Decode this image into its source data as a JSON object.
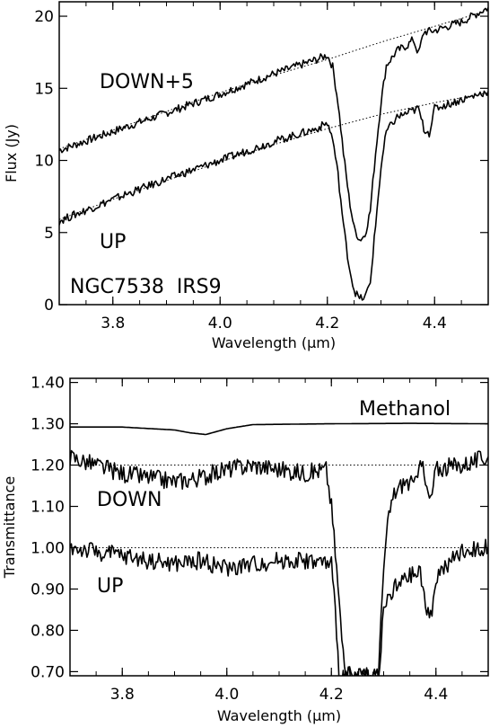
{
  "chart_data": [
    {
      "type": "line",
      "xlabel": "Wavelength (μm)",
      "ylabel": "Flux (Jy)",
      "xlim": [
        3.7,
        4.5
      ],
      "ylim": [
        0,
        21
      ],
      "xticks": [
        3.8,
        4.0,
        4.2,
        4.4
      ],
      "xtick_labels": [
        "3.8",
        "4.0",
        "4.2",
        "4.4"
      ],
      "yticks": [
        0,
        5,
        10,
        15,
        20
      ],
      "ytick_labels": [
        "0",
        "5",
        "10",
        "15",
        "20"
      ],
      "annotations": [
        {
          "text": "DOWN+5",
          "x": 3.75,
          "y": 15.5
        },
        {
          "text": "UP",
          "x": 3.75,
          "y": 4.5
        },
        {
          "text": "NGC7538  IRS9",
          "x": 3.71,
          "y": 1.2
        }
      ],
      "series": [
        {
          "x": [
            3.7,
            3.8,
            3.9,
            4.0,
            4.1,
            4.18,
            4.2,
            4.21,
            4.22,
            4.23,
            4.24,
            4.25,
            4.26,
            4.27,
            4.28,
            4.29,
            4.3,
            4.31,
            4.33,
            4.35,
            4.36,
            4.37,
            4.38,
            4.4,
            4.45,
            4.5
          ],
          "values": [
            10.7,
            12.0,
            13.3,
            14.6,
            16.0,
            17.0,
            17.3,
            16.5,
            14.0,
            10.5,
            7.5,
            5.3,
            4.5,
            4.8,
            6.5,
            10.5,
            14.0,
            16.6,
            17.6,
            18.0,
            18.4,
            17.4,
            18.9,
            19.0,
            19.6,
            20.6
          ]
        },
        {
          "x": [
            3.7,
            3.8,
            3.9,
            4.0,
            4.1,
            4.18,
            4.2,
            4.21,
            4.22,
            4.23,
            4.24,
            4.25,
            4.26,
            4.27,
            4.28,
            4.29,
            4.3,
            4.31,
            4.33,
            4.35,
            4.37,
            4.38,
            4.39,
            4.4,
            4.45,
            4.5
          ],
          "values": [
            5.8,
            7.3,
            8.7,
            10.0,
            11.3,
            12.2,
            12.6,
            11.5,
            9.0,
            5.5,
            2.8,
            1.0,
            0.4,
            0.5,
            1.5,
            5.5,
            9.5,
            12.0,
            13.0,
            13.3,
            13.6,
            12.2,
            11.9,
            13.6,
            14.2,
            14.8
          ]
        },
        {
          "x": [
            3.7,
            3.8,
            3.9,
            4.0,
            4.1,
            4.2,
            4.3,
            4.4,
            4.5
          ],
          "values": [
            10.8,
            12.1,
            13.4,
            14.7,
            15.9,
            17.0,
            18.2,
            19.3,
            20.4
          ]
        },
        {
          "x": [
            3.7,
            3.8,
            3.9,
            4.0,
            4.1,
            4.2,
            4.3,
            4.4,
            4.5
          ],
          "values": [
            5.9,
            7.3,
            8.6,
            9.9,
            11.1,
            12.2,
            13.2,
            14.0,
            14.7
          ]
        }
      ]
    },
    {
      "type": "line",
      "xlabel": "Wavelength (μm)",
      "ylabel": "Transmittance",
      "xlim": [
        3.7,
        4.5
      ],
      "ylim": [
        0.69,
        1.41
      ],
      "xticks": [
        3.8,
        4.0,
        4.2,
        4.4
      ],
      "xtick_labels": [
        "3.8",
        "4.0",
        "4.2",
        "4.4"
      ],
      "yticks": [
        0.7,
        0.8,
        0.9,
        1.0,
        1.1,
        1.2,
        1.3,
        1.4
      ],
      "ytick_labels": [
        "0.70",
        "0.80",
        "0.90",
        "1.00",
        "1.10",
        "1.20",
        "1.30",
        "1.40"
      ],
      "annotations": [
        {
          "text": "Methanol",
          "x": 4.34,
          "y": 1.335
        },
        {
          "text": "DOWN",
          "x": 3.72,
          "y": 1.14
        },
        {
          "text": "UP",
          "x": 3.72,
          "y": 0.94
        }
      ],
      "series": [
        {
          "x": [
            3.7,
            3.8,
            3.9,
            3.93,
            3.96,
            4.0,
            4.05,
            4.2,
            4.35,
            4.5
          ],
          "values": [
            1.292,
            1.292,
            1.285,
            1.278,
            1.274,
            1.288,
            1.298,
            1.3,
            1.301,
            1.3
          ]
        },
        {
          "x": [
            3.7,
            3.75,
            3.8,
            3.85,
            3.9,
            3.95,
            4.0,
            4.05,
            4.1,
            4.15,
            4.19,
            4.2,
            4.21,
            4.22,
            4.23,
            4.29,
            4.3,
            4.31,
            4.32,
            4.34,
            4.36,
            4.37,
            4.38,
            4.39,
            4.4,
            4.45,
            4.5
          ],
          "values": [
            1.22,
            1.2,
            1.18,
            1.17,
            1.16,
            1.17,
            1.19,
            1.2,
            1.19,
            1.18,
            1.19,
            1.1,
            0.95,
            0.78,
            0.69,
            0.69,
            0.95,
            1.08,
            1.13,
            1.16,
            1.15,
            1.23,
            1.15,
            1.11,
            1.19,
            1.2,
            1.22
          ]
        },
        {
          "x": [
            3.7,
            3.75,
            3.8,
            3.85,
            3.9,
            3.95,
            4.0,
            4.05,
            4.1,
            4.15,
            4.2,
            4.21,
            4.215,
            4.29,
            4.3,
            4.32,
            4.35,
            4.37,
            4.38,
            4.39,
            4.4,
            4.45,
            4.5
          ],
          "values": [
            1.0,
            0.99,
            0.98,
            0.97,
            0.96,
            0.97,
            0.95,
            0.96,
            0.97,
            0.97,
            0.96,
            0.8,
            0.69,
            0.69,
            0.85,
            0.9,
            0.93,
            0.94,
            0.86,
            0.83,
            0.93,
            0.99,
            1.0
          ]
        },
        {
          "x": [
            3.7,
            4.5
          ],
          "values": [
            1.2,
            1.2
          ]
        },
        {
          "x": [
            3.7,
            4.5
          ],
          "values": [
            1.0,
            1.0
          ]
        }
      ]
    }
  ]
}
